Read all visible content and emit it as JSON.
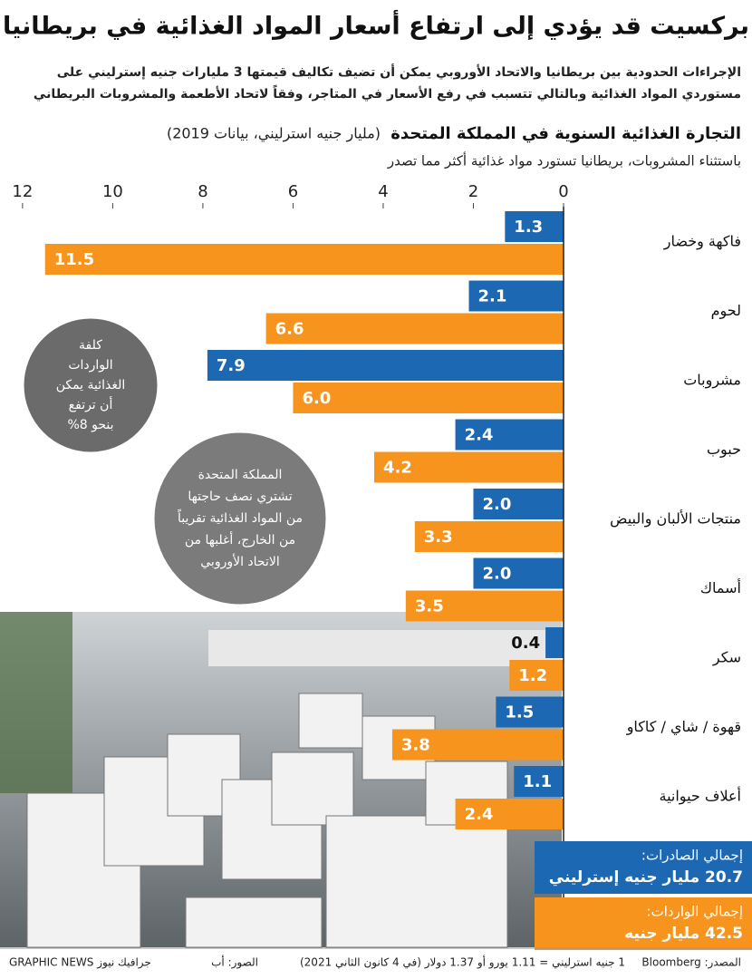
{
  "chart_data": {
    "type": "bar",
    "orientation": "horizontal",
    "title": "بركسيت قد يؤدي إلى ارتفاع أسعار المواد الغذائية في بريطانيا",
    "subtitle_lines": [
      "الإجراءات الحدودية بين بريطانيا والاتحاد الأوروبي يمكن أن تضيف تكاليف قيمتها 3 مليارات جنيه إسترليني على",
      "مستوردي المواد الغذائية وبالتالي تتسبب في رفع الأسعار في المتاجر، وفقاً لاتحاد الأطعمة والمشروبات البريطاني"
    ],
    "chart_title": "التجارة الغذائية السنوية في المملكة المتحدة",
    "chart_unit": "(مليار جنيه استرليني، بيانات 2019)",
    "note": "باستثناء المشروبات، بريطانيا تستورد مواد غذائية أكثر مما تصدر",
    "categories": [
      "فاكهة وخضار",
      "لحوم",
      "مشروبات",
      "حبوب",
      "منتجات الألبان والبيض",
      "أسماك",
      "سكر",
      "قهوة / شاي / كاكاو",
      "أعلاف حيوانية"
    ],
    "series": [
      {
        "name": "إجمالي الصادرات:",
        "total_label": "20.7 مليار جنيه إسترليني",
        "color": "#1c68b3",
        "values": [
          1.3,
          2.1,
          7.9,
          2.4,
          2.0,
          2.0,
          0.4,
          1.5,
          1.1
        ],
        "value_labels": [
          "1.3",
          "2.1",
          "7.9",
          "2.4",
          "2.0",
          "2.0",
          "0.4",
          "1.5",
          "1.1"
        ]
      },
      {
        "name": "إجمالي الواردات:",
        "total_label": "42.5 مليار جنيه",
        "color": "#f7941d",
        "values": [
          11.5,
          6.6,
          6.0,
          4.2,
          3.3,
          3.5,
          1.2,
          3.8,
          2.4
        ],
        "value_labels": [
          "11.5",
          "6.6",
          "6.0",
          "4.2",
          "3.3",
          "3.5",
          "1.2",
          "3.8",
          "2.4"
        ]
      }
    ],
    "xlim": [
      0,
      12.5
    ],
    "xticks": [
      0,
      2,
      4,
      6,
      8,
      10,
      12
    ],
    "annotations": [
      {
        "lines": [
          "كلفة",
          "الواردات",
          "الغذائية يمكن",
          "أن ترتفع",
          "بنحو 8%"
        ]
      },
      {
        "lines": [
          "المملكة المتحدة",
          "تشتري نصف حاجتها",
          "من المواد الغذائية تقريباً",
          "من الخارج، أغلبها من",
          "الاتحاد الأوروبي"
        ]
      }
    ],
    "footer": {
      "source": "المصدر: Bloomberg",
      "currency": "1 جنيه استرليني = 1.11 يورو أو 1.37 دولار (في 4 كانون الثاني 2021)",
      "photo": "الصور: أب",
      "brand": "GRAPHIC NEWS جرافيك نيوز"
    }
  }
}
